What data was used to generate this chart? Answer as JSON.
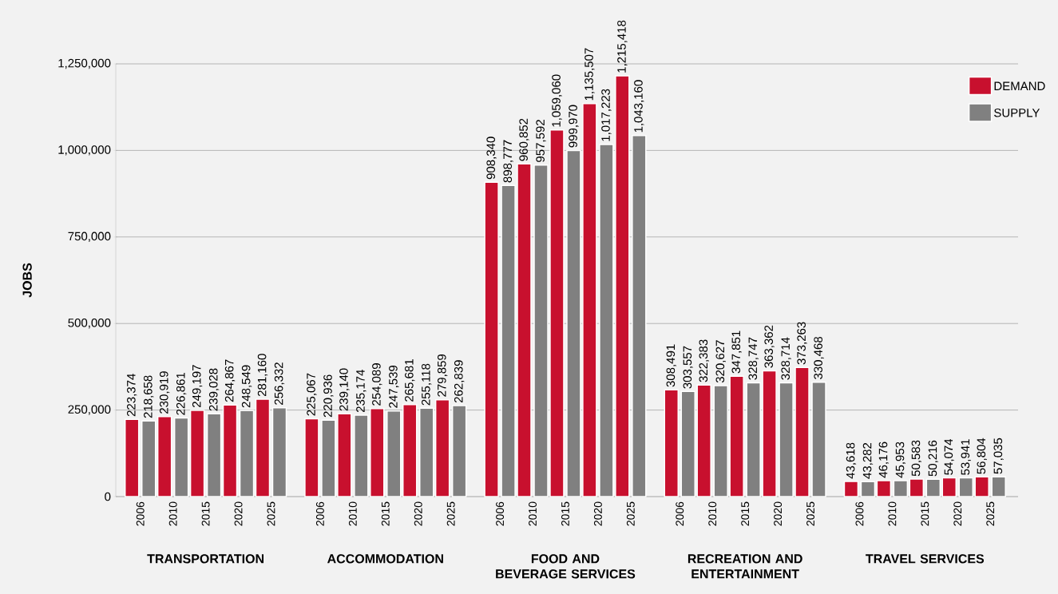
{
  "chart_data": {
    "type": "bar",
    "ylabel": "JOBS",
    "categories": [
      "2006",
      "2010",
      "2015",
      "2020",
      "2025",
      "2006",
      "2010",
      "2015",
      "2020",
      "2025",
      "2006",
      "2010",
      "2015",
      "2020",
      "2025",
      "2006",
      "2010",
      "2015",
      "2020",
      "2025",
      "2006",
      "2010",
      "2015",
      "2020",
      "2025"
    ],
    "annotations": [
      "TRANSPORTATION",
      "ACCOMMODATION",
      "FOOD AND BEVERAGE SERVICES",
      "RECREATION AND ENTERTAINMENT",
      "TRAVEL SERVICES"
    ],
    "series": [
      {
        "name": "DEMAND",
        "color": "#c8102e",
        "values": [
          223374,
          230919,
          249197,
          264867,
          281160,
          225067,
          239140,
          254089,
          265681,
          279859,
          908340,
          960852,
          1059060,
          1135507,
          1215418,
          308491,
          322383,
          347851,
          363362,
          373263,
          43618,
          46176,
          50583,
          54074,
          56804
        ],
        "value_labels": [
          "223,374",
          "230,919",
          "249,197",
          "264,867",
          "281,160",
          "225,067",
          "239,140",
          "254,089",
          "265,681",
          "279,859",
          "908,340",
          "960,852",
          "1,059,060",
          "1,135,507",
          "1,215,418",
          "308,491",
          "322,383",
          "347,851",
          "363,362",
          "373,263",
          "43,618",
          "46,176",
          "50,583",
          "54,074",
          "56,804"
        ]
      },
      {
        "name": "SUPPLY",
        "color": "#808080",
        "values": [
          218658,
          226861,
          239028,
          248549,
          256332,
          220936,
          235174,
          247539,
          255118,
          262839,
          898777,
          957592,
          999970,
          1017223,
          1043160,
          303557,
          320627,
          328747,
          328714,
          330468,
          43282,
          45953,
          50216,
          53941,
          57035
        ],
        "value_labels": [
          "218,658",
          "226,861",
          "239,028",
          "248,549",
          "256,332",
          "220,936",
          "235,174",
          "247,539",
          "255,118",
          "262,839",
          "898,777",
          "957,592",
          "999,970",
          "1,017,223",
          "1,043,160",
          "303,557",
          "320,627",
          "328,747",
          "328,714",
          "330,468",
          "43,282",
          "45,953",
          "50,216",
          "53,941",
          "57,035"
        ]
      }
    ],
    "ylim": [
      0,
      1250000
    ],
    "yticks": [
      0,
      {
        "value": 250000,
        "label": "250,000"
      },
      {
        "value": 500000,
        "label": "500,000"
      },
      {
        "value": 750000,
        "label": "750,000"
      },
      {
        "value": 1000000,
        "label": "1,000,000"
      },
      {
        "value": 1250000,
        "label": "1,250,000"
      }
    ],
    "grid": "y",
    "legend": "top right"
  }
}
